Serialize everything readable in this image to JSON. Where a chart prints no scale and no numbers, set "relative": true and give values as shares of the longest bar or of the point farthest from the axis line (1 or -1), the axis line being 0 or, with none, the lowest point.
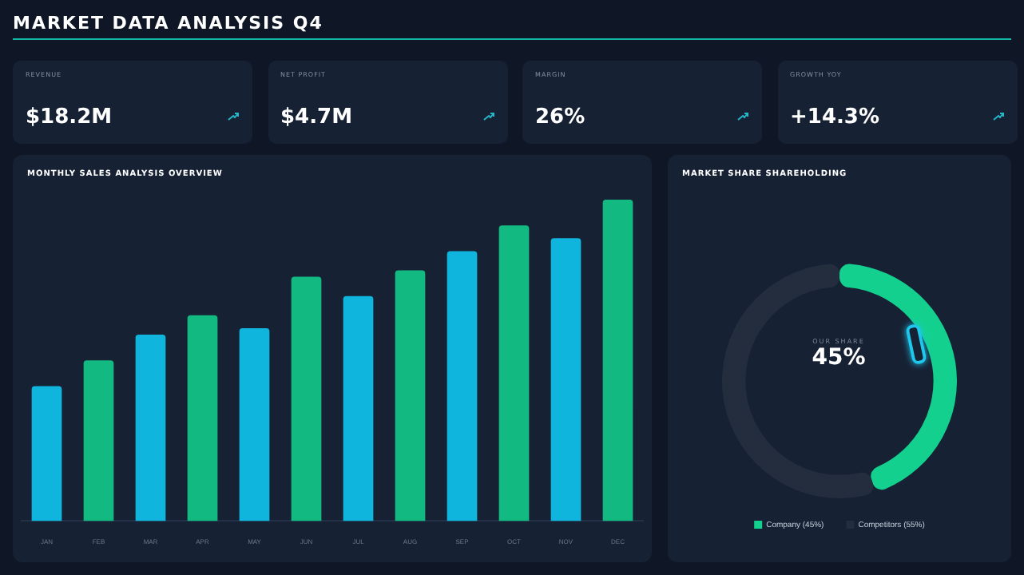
{
  "chart_data": [
    {
      "type": "other",
      "title": "MARKET DATA ANALYSIS Q4",
      "categories": [
        "REVENUE",
        "NET PROFIT",
        "MARGIN",
        "GROWTH YOY"
      ],
      "annotations": [
        "$18.2M",
        "$4.7M",
        "26%",
        "+14.3%"
      ]
    },
    {
      "type": "bar",
      "title": "MONTHLY SALES ANALYSIS OVERVIEW",
      "relative": true,
      "categories": [
        "JAN",
        "FEB",
        "MAR",
        "APR",
        "MAY",
        "JUN",
        "JUL",
        "AUG",
        "SEP",
        "OCT",
        "NOV",
        "DEC"
      ],
      "values": [
        0.42,
        0.5,
        0.58,
        0.64,
        0.6,
        0.76,
        0.7,
        0.78,
        0.84,
        0.92,
        0.88,
        1
      ],
      "colors": [
        "#0fb5dc",
        "#12b981",
        "#0fb5dc",
        "#12b981",
        "#0fb5dc",
        "#12b981",
        "#0fb5dc",
        "#12b981",
        "#0fb5dc",
        "#12b981",
        "#0fb5dc",
        "#12b981"
      ]
    },
    {
      "type": "donut",
      "title": "MARKET SHARE SHAREHOLDING",
      "categories": [
        "Company (45%)",
        "Competitors (55%)"
      ],
      "values": [
        45,
        55
      ],
      "colors": [
        "#14d08f",
        "#232d3e"
      ],
      "legend": "bottom",
      "annotations": [
        "OUR SHARE",
        "45%"
      ]
    }
  ]
}
